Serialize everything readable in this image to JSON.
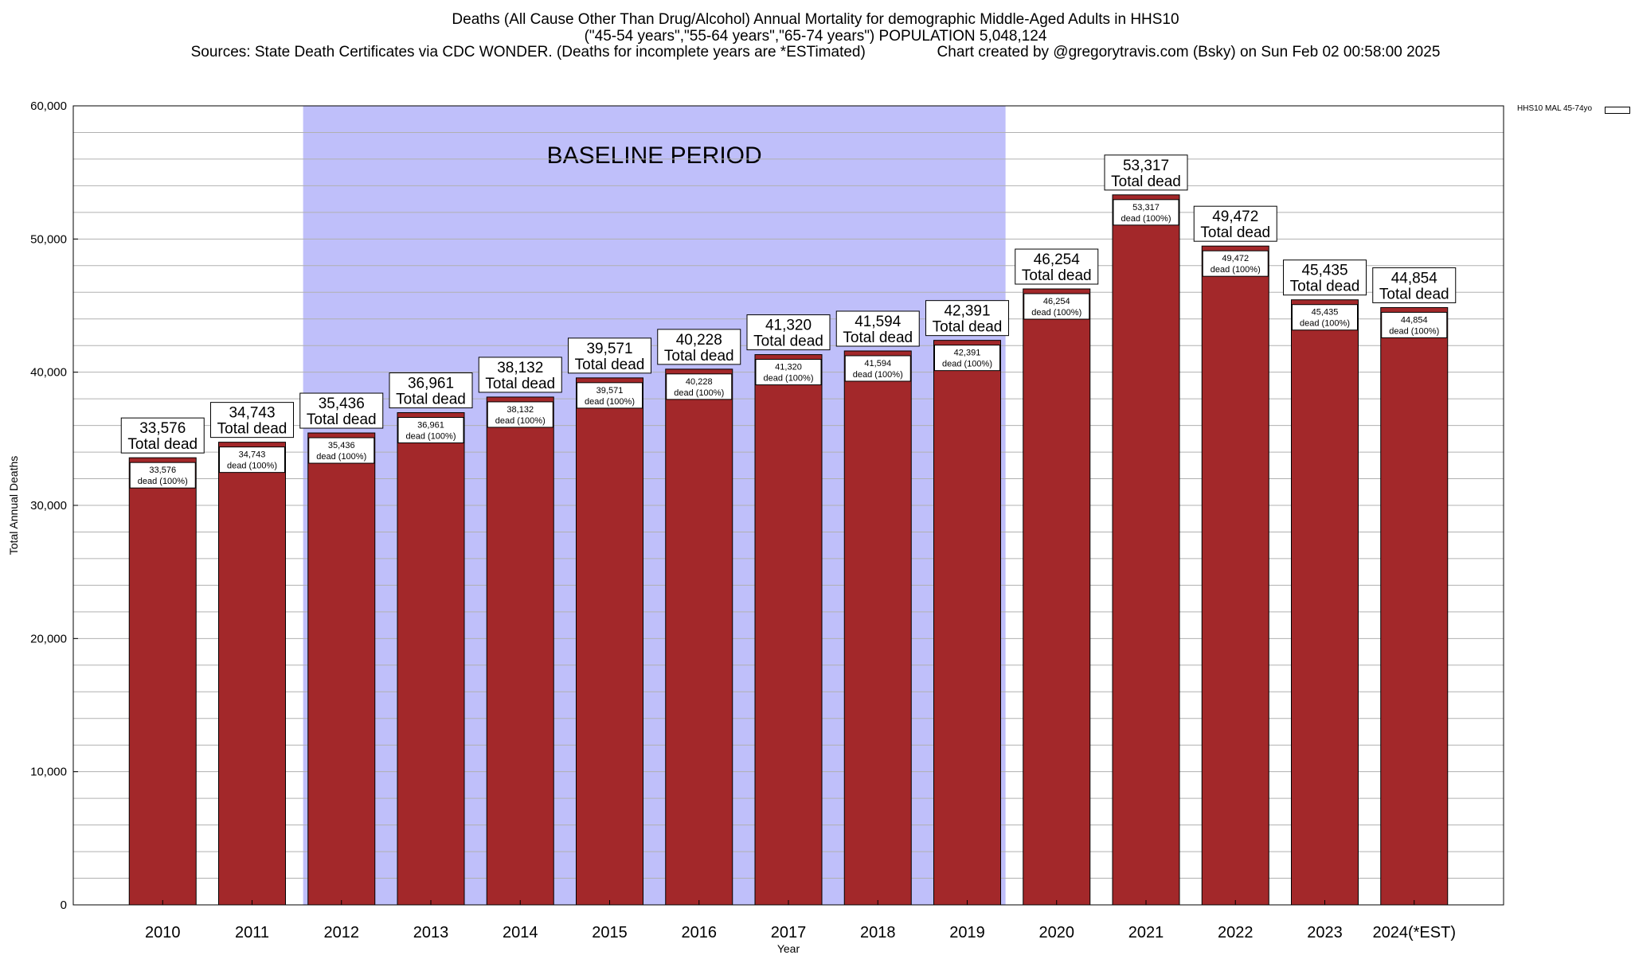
{
  "title": {
    "line1": "Deaths (All Cause Other Than Drug/Alcohol) Annual Mortality for demographic Middle-Aged Adults in HHS10",
    "line2": "(\"45-54 years\",\"55-64 years\",\"65-74 years\") POPULATION 5,048,124",
    "line3": "Sources: State Death Certificates via CDC WONDER. (Deaths for incomplete years are *ESTimated)                 Chart created by @gregorytravis.com (Bsky) on Sun Feb 02 00:58:00 2025"
  },
  "colors": {
    "bar": "#a3282a",
    "baseline_shade": "#bfbffa"
  },
  "chart_data": {
    "type": "bar",
    "categories": [
      "2010",
      "2011",
      "2012",
      "2013",
      "2014",
      "2015",
      "2016",
      "2017",
      "2018",
      "2019",
      "2020",
      "2021",
      "2022",
      "2023",
      "2024(*EST)"
    ],
    "series": [
      {
        "name": "HHS10 MAL 45-74yo",
        "values": [
          33576,
          34743,
          35436,
          36961,
          38132,
          39571,
          40228,
          41320,
          41594,
          42391,
          46254,
          53317,
          49472,
          45435,
          44854
        ]
      }
    ],
    "value_labels": [
      "33,576",
      "34,743",
      "35,436",
      "36,961",
      "38,132",
      "39,571",
      "40,228",
      "41,320",
      "41,594",
      "42,391",
      "46,254",
      "53,317",
      "49,472",
      "45,435",
      "44,854"
    ],
    "top_label_suffix": "Total dead",
    "inner_label_suffix": "dead (100%)",
    "xlabel": "Year",
    "ylabel": "Total Annual Deaths",
    "ylim": [
      0,
      60000
    ],
    "yticks": [
      0,
      10000,
      20000,
      30000,
      40000,
      50000,
      60000
    ],
    "ytick_labels": [
      "0",
      "10,000",
      "20,000",
      "30,000",
      "40,000",
      "50,000",
      "60,000"
    ],
    "minor_gridline_step": 2000,
    "grid": true,
    "legend_position": "top-right",
    "baseline_period": {
      "label": "BASELINE PERIOD",
      "start": "2012",
      "end": "2019"
    }
  }
}
